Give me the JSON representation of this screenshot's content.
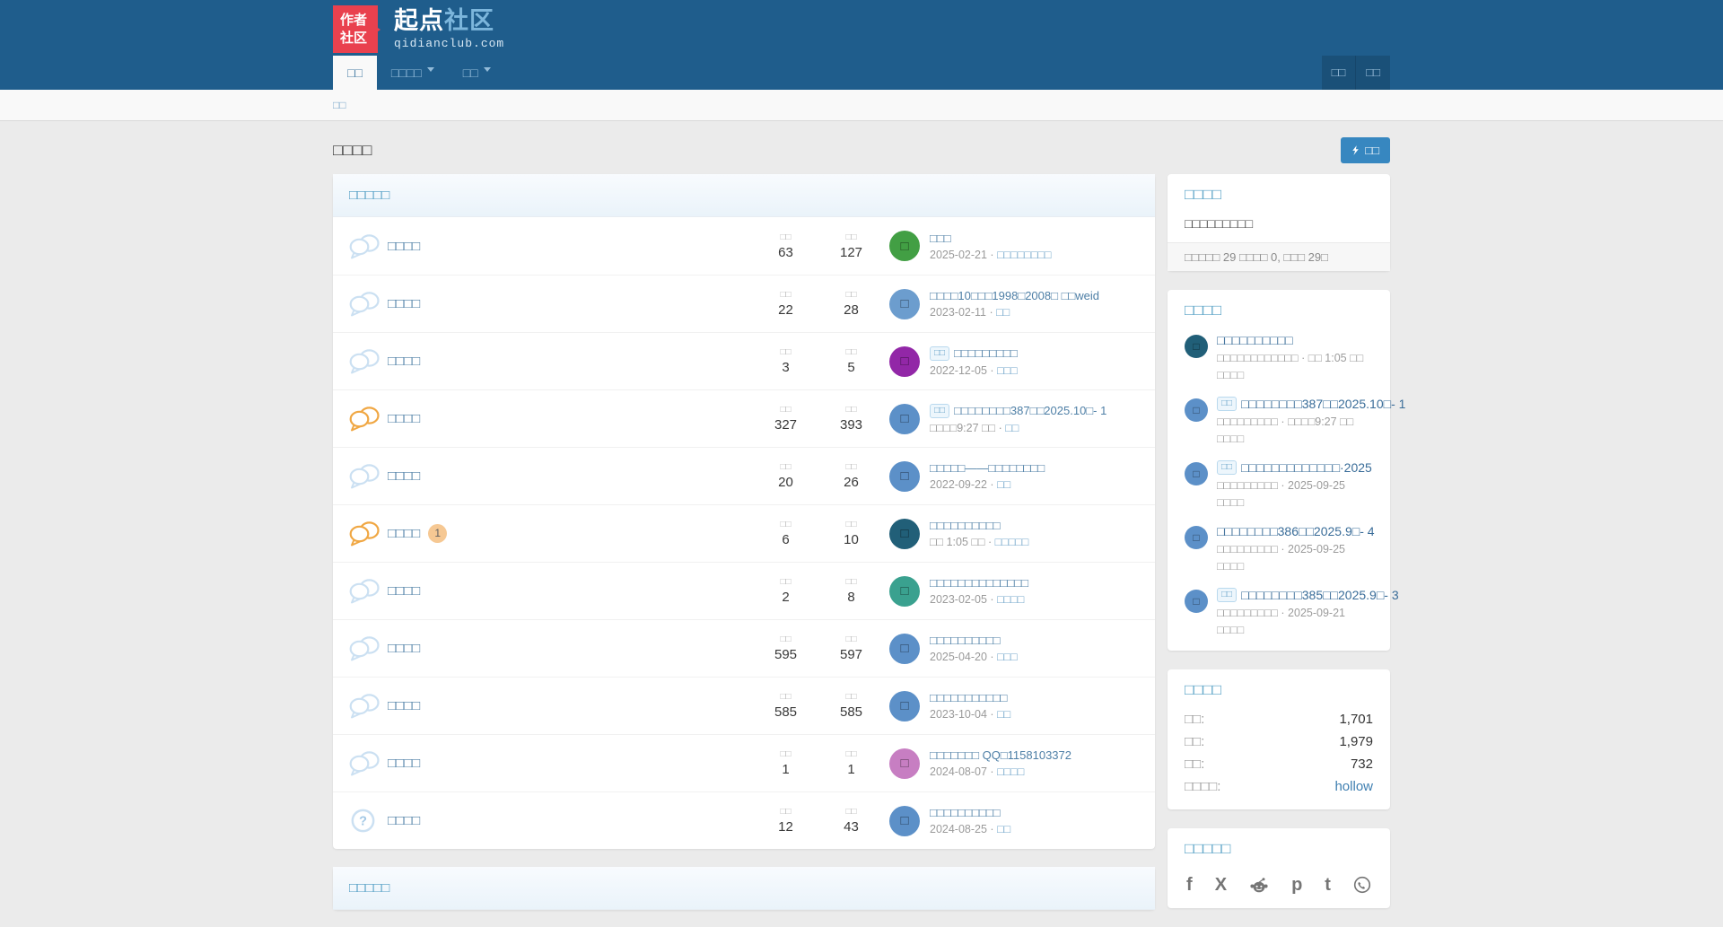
{
  "brand": {
    "badge_line1": "作者",
    "badge_line2": "社区",
    "title_primary": "起点",
    "title_secondary": "社区",
    "subtitle": "qidianclub.com"
  },
  "nav": {
    "items": [
      {
        "label": "□□",
        "active": true,
        "dropdown": false
      },
      {
        "label": "□□□□",
        "active": false,
        "dropdown": true
      },
      {
        "label": "□□",
        "active": false,
        "dropdown": true
      }
    ],
    "right_buttons": [
      "□□",
      "□□"
    ]
  },
  "breadcrumb": {
    "label": "□□"
  },
  "page": {
    "title": "□□□□",
    "new_post_button": "□□"
  },
  "forum_panel": {
    "header": "□□□□□",
    "col_topics_label": "□□",
    "col_posts_label": "□□",
    "rows": [
      {
        "icon": "comments",
        "icon_state": "default",
        "title": "□□□□",
        "unread": null,
        "topics": "63",
        "posts": "127",
        "avatar": {
          "char": "□",
          "color": "#429F44"
        },
        "last": {
          "badge": null,
          "title": "□□□",
          "date": "2025-02-21",
          "link": "□□□□□□□□"
        }
      },
      {
        "icon": "comments",
        "icon_state": "default",
        "title": "□□□□",
        "unread": null,
        "topics": "22",
        "posts": "28",
        "avatar": {
          "char": "□",
          "color": "#6C9DCE"
        },
        "last": {
          "badge": null,
          "title": "□□□□10□□□1998□2008□ □□weid",
          "date": "2023-02-11",
          "link": "□□"
        }
      },
      {
        "icon": "comments",
        "icon_state": "default",
        "title": "□□□□",
        "unread": null,
        "topics": "3",
        "posts": "5",
        "avatar": {
          "char": "□",
          "color": "#9227A7"
        },
        "last": {
          "badge": "□□",
          "title": "□□□□□□□□□",
          "date": "2022-12-05",
          "link": "□□□"
        }
      },
      {
        "icon": "comments",
        "icon_state": "new",
        "title": "□□□□",
        "unread": null,
        "topics": "327",
        "posts": "393",
        "avatar": {
          "char": "□",
          "color": "#5C90C8"
        },
        "last": {
          "badge": "□□",
          "title": "□□□□□□□□387□□2025.10□- 1",
          "date": "□□□□9:27 □□",
          "link": "□□"
        }
      },
      {
        "icon": "comments",
        "icon_state": "default",
        "title": "□□□□",
        "unread": null,
        "topics": "20",
        "posts": "26",
        "avatar": {
          "char": "□",
          "color": "#5C90C8"
        },
        "last": {
          "badge": null,
          "title": "□□□□□——□□□□□□□□",
          "date": "2022-09-22",
          "link": "□□"
        }
      },
      {
        "icon": "comments",
        "icon_state": "new",
        "title": "□□□□",
        "unread": "1",
        "topics": "6",
        "posts": "10",
        "avatar": {
          "char": "□",
          "color": "#215F78"
        },
        "last": {
          "badge": null,
          "title": "□□□□□□□□□□",
          "date": "□□ 1:05 □□",
          "link": "□□□□□"
        }
      },
      {
        "icon": "comments",
        "icon_state": "default",
        "title": "□□□□",
        "unread": null,
        "topics": "2",
        "posts": "8",
        "avatar": {
          "char": "□",
          "color": "#3AA18F"
        },
        "last": {
          "badge": null,
          "title": "□□□□□□□□□□□□□□",
          "date": "2023-02-05",
          "link": "□□□□"
        }
      },
      {
        "icon": "comments",
        "icon_state": "default",
        "title": "□□□□",
        "unread": null,
        "topics": "595",
        "posts": "597",
        "avatar": {
          "char": "□",
          "color": "#5C90C8"
        },
        "last": {
          "badge": null,
          "title": "□□□□□□□□□□",
          "date": "2025-04-20",
          "link": "□□□"
        }
      },
      {
        "icon": "comments",
        "icon_state": "default",
        "title": "□□□□",
        "unread": null,
        "topics": "585",
        "posts": "585",
        "avatar": {
          "char": "□",
          "color": "#5C90C8"
        },
        "last": {
          "badge": null,
          "title": "□□□□□□□□□□□",
          "date": "2023-10-04",
          "link": "□□"
        }
      },
      {
        "icon": "comments",
        "icon_state": "default",
        "title": "□□□□",
        "unread": null,
        "topics": "1",
        "posts": "1",
        "avatar": {
          "char": "□",
          "color": "#C77EC2"
        },
        "last": {
          "badge": null,
          "title": "□□□□□□□ QQ□1158103372",
          "date": "2024-08-07",
          "link": "□□□□"
        }
      },
      {
        "icon": "question",
        "icon_state": "default",
        "title": "□□□□",
        "unread": null,
        "topics": "12",
        "posts": "43",
        "avatar": {
          "char": "□",
          "color": "#5C90C8"
        },
        "last": {
          "badge": null,
          "title": "□□□□□□□□□□",
          "date": "2024-08-25",
          "link": "□□"
        }
      }
    ]
  },
  "bottom_panel": {
    "header": "□□□□□"
  },
  "sidebar": {
    "info_card": {
      "header": "□□□□",
      "body": "□□□□□□□□□",
      "footer": "□□□□□ 29 □□□□ 0, □□□ 29□"
    },
    "latest_card": {
      "header": "□□□□",
      "items": [
        {
          "badge": null,
          "title": "□□□□□□□□□□",
          "sub": "□□□□□□□□□□□□ · □□ 1:05 □□",
          "category": "□□□□",
          "avatar": {
            "char": "□",
            "color": "#215F78"
          }
        },
        {
          "badge": "□□",
          "title": "□□□□□□□□387□□2025.10□- 1",
          "sub": "□□□□□□□□□ · □□□□9:27 □□",
          "category": "□□□□",
          "avatar": {
            "char": "□",
            "color": "#5C90C8"
          }
        },
        {
          "badge": "□□",
          "title": "□□□□□□□□□□□□□·2025",
          "sub": "□□□□□□□□□ · 2025-09-25",
          "category": "□□□□",
          "avatar": {
            "char": "□",
            "color": "#5C90C8"
          }
        },
        {
          "badge": null,
          "title": "□□□□□□□□386□□2025.9□- 4",
          "sub": "□□□□□□□□□ · 2025-09-25",
          "category": "□□□□",
          "avatar": {
            "char": "□",
            "color": "#5C90C8"
          }
        },
        {
          "badge": "□□",
          "title": "□□□□□□□□385□□2025.9□- 3",
          "sub": "□□□□□□□□□ · 2025-09-21",
          "category": "□□□□",
          "avatar": {
            "char": "□",
            "color": "#5C90C8"
          }
        }
      ]
    },
    "stats_card": {
      "header": "□□□□",
      "rows": [
        {
          "label": "□□:",
          "value": "1,701",
          "is_link": false
        },
        {
          "label": "□□:",
          "value": "1,979",
          "is_link": false
        },
        {
          "label": "□□:",
          "value": "732",
          "is_link": false
        },
        {
          "label": "□□□□:",
          "value": "hollow",
          "is_link": true
        }
      ]
    },
    "share_card": {
      "header": "□□□□□",
      "icons": [
        "facebook",
        "x-twitter",
        "reddit",
        "pinterest",
        "tumblr",
        "whatsapp"
      ]
    }
  },
  "colors": {
    "navbar": "#1F5D8C",
    "brand_badge_red": "#E9414E",
    "accent_link": "#4E7FA6",
    "panel_header_text": "#4F9CC3",
    "new_icon_orange": "#F0A743",
    "post_button_blue": "#3787C0",
    "stats_link_blue": "#3F7FB1"
  }
}
